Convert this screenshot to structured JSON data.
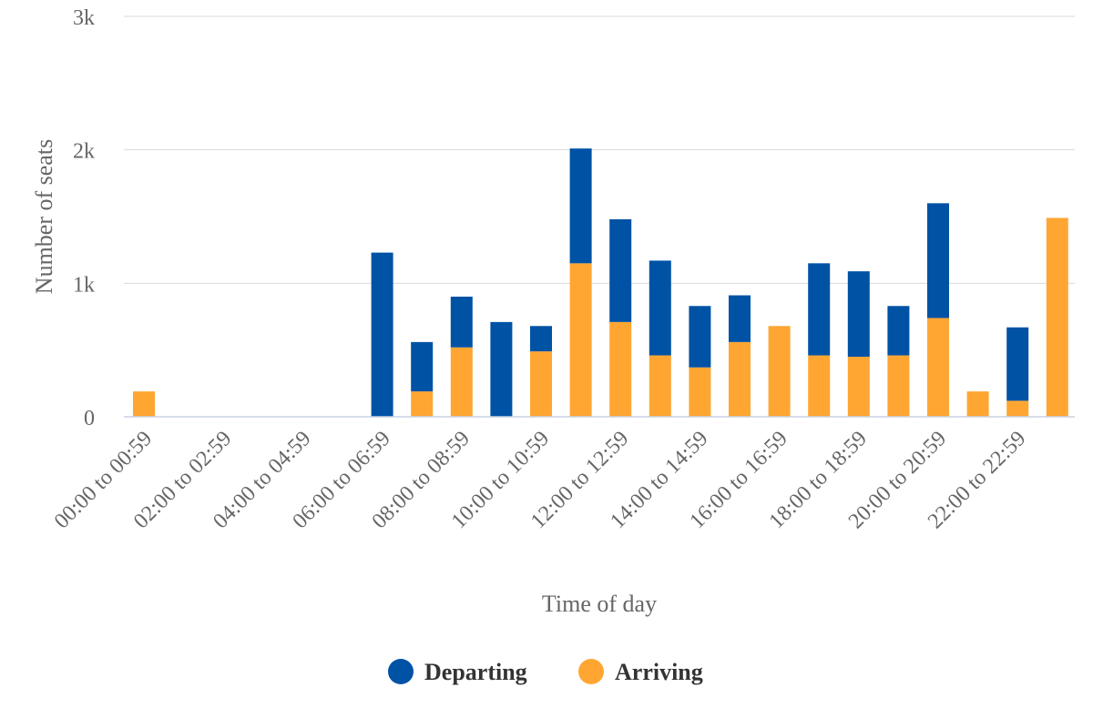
{
  "chart_data": {
    "type": "bar",
    "stacked": true,
    "categories": [
      "00:00 to 00:59",
      "01:00 to 01:59",
      "02:00 to 02:59",
      "03:00 to 03:59",
      "04:00 to 04:59",
      "05:00 to 05:59",
      "06:00 to 06:59",
      "07:00 to 07:59",
      "08:00 to 08:59",
      "09:00 to 09:59",
      "10:00 to 10:59",
      "11:00 to 11:59",
      "12:00 to 12:59",
      "13:00 to 13:59",
      "14:00 to 14:59",
      "15:00 to 15:59",
      "16:00 to 16:59",
      "17:00 to 17:59",
      "18:00 to 18:59",
      "19:00 to 19:59",
      "20:00 to 20:59",
      "21:00 to 21:59",
      "22:00 to 22:59",
      "23:00 to 23:59"
    ],
    "visible_category_labels": [
      "00:00 to 00:59",
      "02:00 to 02:59",
      "04:00 to 04:59",
      "06:00 to 06:59",
      "08:00 to 08:59",
      "10:00 to 10:59",
      "12:00 to 12:59",
      "14:00 to 14:59",
      "16:00 to 16:59",
      "18:00 to 18:59",
      "20:00 to 20:59",
      "22:00 to 22:59"
    ],
    "series": [
      {
        "name": "Departing",
        "color": "#0052a5",
        "values": [
          0,
          0,
          0,
          0,
          0,
          0,
          1230,
          370,
          380,
          710,
          190,
          860,
          770,
          710,
          460,
          350,
          0,
          690,
          640,
          370,
          860,
          0,
          550,
          0
        ]
      },
      {
        "name": "Arriving",
        "color": "#ffa632",
        "values": [
          190,
          0,
          0,
          0,
          0,
          0,
          0,
          190,
          520,
          0,
          490,
          1150,
          710,
          460,
          370,
          560,
          680,
          460,
          450,
          460,
          740,
          190,
          120,
          1490
        ]
      }
    ],
    "xlabel": "Time of day",
    "ylabel": "Number of seats",
    "ylim": [
      0,
      3000
    ],
    "y_ticks": [
      {
        "value": 0,
        "label": "0"
      },
      {
        "value": 1000,
        "label": "1k"
      },
      {
        "value": 2000,
        "label": "2k"
      },
      {
        "value": 3000,
        "label": "3k"
      }
    ],
    "grid": true,
    "legend_position": "bottom-center"
  }
}
